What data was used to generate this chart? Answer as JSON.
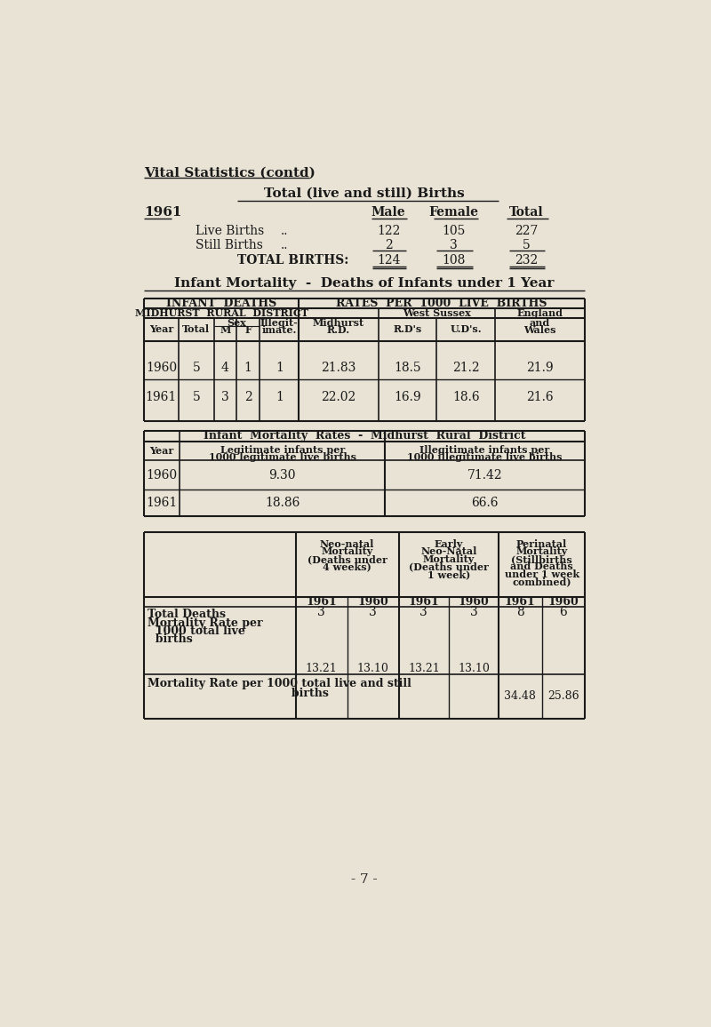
{
  "bg_color": "#e8e3d5",
  "title": "Vital Statistics (contd)",
  "section1_title": "Total (live and still) Births",
  "year_label": "1961",
  "live_births": [
    122,
    105,
    227
  ],
  "still_births": [
    2,
    3,
    5
  ],
  "total_births": [
    124,
    108,
    232
  ],
  "section2_title": "Infant Mortality  -  Deaths of Infants under 1 Year",
  "infant_rows": [
    {
      "year": "1960",
      "total": "5",
      "m": "4",
      "f": "1",
      "illegit": "1",
      "midhurst": "21.83",
      "rds": "18.5",
      "uds": "21.2",
      "england": "21.9"
    },
    {
      "year": "1961",
      "total": "5",
      "m": "3",
      "f": "2",
      "illegit": "1",
      "midhurst": "22.02",
      "rds": "16.9",
      "uds": "18.6",
      "england": "21.6"
    }
  ],
  "legit_rows": [
    {
      "year": "1960",
      "legit": "9.30",
      "illegit": "71.42"
    },
    {
      "year": "1961",
      "legit": "18.86",
      "illegit": "66.6"
    }
  ],
  "page_number": "- 7 -"
}
